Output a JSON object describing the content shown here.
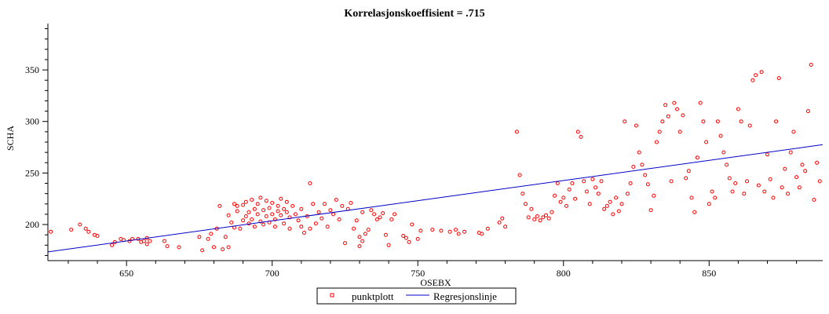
{
  "chart_data": {
    "type": "scatter",
    "title": "Korrelasjonskoeffisient =  .715",
    "xlabel": "OSEBX",
    "ylabel": "SCHA",
    "xlim": [
      623,
      889
    ],
    "ylim": [
      165,
      395
    ],
    "x_ticks": [
      650,
      700,
      750,
      800,
      850
    ],
    "y_ticks": [
      200,
      250,
      300,
      350
    ],
    "grid": false,
    "legend_position": "bottom-center",
    "colors": {
      "points": "#ff0000",
      "line": "#0000c8",
      "axis": "#000000"
    },
    "series": [
      {
        "name": "punktplott",
        "kind": "scatter",
        "marker": "circle-open",
        "points": [
          [
            624,
            193
          ],
          [
            631,
            195
          ],
          [
            634,
            200
          ],
          [
            636,
            196
          ],
          [
            637,
            193
          ],
          [
            639,
            190
          ],
          [
            640,
            189
          ],
          [
            645,
            180
          ],
          [
            646,
            183
          ],
          [
            648,
            186
          ],
          [
            649,
            185
          ],
          [
            651,
            184
          ],
          [
            652,
            186
          ],
          [
            654,
            186
          ],
          [
            655,
            183
          ],
          [
            656,
            184
          ],
          [
            657,
            187
          ],
          [
            657,
            181
          ],
          [
            658,
            184
          ],
          [
            663,
            184
          ],
          [
            664,
            179
          ],
          [
            668,
            178
          ],
          [
            675,
            188
          ],
          [
            676,
            175
          ],
          [
            678,
            186
          ],
          [
            679,
            191
          ],
          [
            680,
            178
          ],
          [
            681,
            196
          ],
          [
            682,
            218
          ],
          [
            683,
            176
          ],
          [
            684,
            188
          ],
          [
            685,
            178
          ],
          [
            685,
            209
          ],
          [
            686,
            202
          ],
          [
            687,
            197
          ],
          [
            687,
            220
          ],
          [
            688,
            213
          ],
          [
            688,
            218
          ],
          [
            689,
            196
          ],
          [
            690,
            204
          ],
          [
            690,
            219
          ],
          [
            691,
            208
          ],
          [
            691,
            222
          ],
          [
            692,
            201
          ],
          [
            692,
            212
          ],
          [
            693,
            224
          ],
          [
            693,
            205
          ],
          [
            694,
            215
          ],
          [
            694,
            198
          ],
          [
            695,
            210
          ],
          [
            695,
            220
          ],
          [
            696,
            203
          ],
          [
            696,
            226
          ],
          [
            697,
            200
          ],
          [
            697,
            214
          ],
          [
            698,
            208
          ],
          [
            698,
            223
          ],
          [
            699,
            202
          ],
          [
            699,
            216
          ],
          [
            700,
            210
          ],
          [
            700,
            221
          ],
          [
            701,
            205
          ],
          [
            701,
            198
          ],
          [
            702,
            213
          ],
          [
            702,
            218
          ],
          [
            703,
            209
          ],
          [
            703,
            225
          ],
          [
            704,
            201
          ],
          [
            704,
            215
          ],
          [
            705,
            212
          ],
          [
            705,
            222
          ],
          [
            706,
            196
          ],
          [
            706,
            207
          ],
          [
            707,
            218
          ],
          [
            708,
            210
          ],
          [
            709,
            204
          ],
          [
            710,
            198
          ],
          [
            710,
            215
          ],
          [
            711,
            192
          ],
          [
            712,
            208
          ],
          [
            713,
            240
          ],
          [
            713,
            196
          ],
          [
            714,
            220
          ],
          [
            715,
            201
          ],
          [
            716,
            212
          ],
          [
            717,
            206
          ],
          [
            718,
            220
          ],
          [
            719,
            198
          ],
          [
            720,
            214
          ],
          [
            721,
            210
          ],
          [
            722,
            224
          ],
          [
            723,
            205
          ],
          [
            724,
            218
          ],
          [
            725,
            182
          ],
          [
            726,
            215
          ],
          [
            727,
            221
          ],
          [
            728,
            196
          ],
          [
            729,
            204
          ],
          [
            730,
            188
          ],
          [
            730,
            179
          ],
          [
            731,
            184
          ],
          [
            731,
            212
          ],
          [
            732,
            191
          ],
          [
            733,
            195
          ],
          [
            734,
            214
          ],
          [
            735,
            210
          ],
          [
            736,
            205
          ],
          [
            737,
            207
          ],
          [
            738,
            211
          ],
          [
            739,
            190
          ],
          [
            740,
            180
          ],
          [
            741,
            205
          ],
          [
            742,
            210
          ],
          [
            745,
            189
          ],
          [
            746,
            187
          ],
          [
            747,
            183
          ],
          [
            748,
            200
          ],
          [
            750,
            186
          ],
          [
            751,
            194
          ],
          [
            755,
            195
          ],
          [
            758,
            194
          ],
          [
            761,
            193
          ],
          [
            763,
            195
          ],
          [
            764,
            191
          ],
          [
            766,
            193
          ],
          [
            771,
            192
          ],
          [
            772,
            191
          ],
          [
            774,
            196
          ],
          [
            778,
            202
          ],
          [
            779,
            206
          ],
          [
            780,
            198
          ],
          [
            784,
            290
          ],
          [
            785,
            248
          ],
          [
            786,
            230
          ],
          [
            787,
            220
          ],
          [
            788,
            207
          ],
          [
            789,
            215
          ],
          [
            790,
            205
          ],
          [
            791,
            208
          ],
          [
            792,
            204
          ],
          [
            793,
            207
          ],
          [
            794,
            209
          ],
          [
            795,
            206
          ],
          [
            796,
            212
          ],
          [
            797,
            228
          ],
          [
            798,
            240
          ],
          [
            799,
            222
          ],
          [
            800,
            226
          ],
          [
            801,
            218
          ],
          [
            802,
            234
          ],
          [
            803,
            240
          ],
          [
            804,
            225
          ],
          [
            805,
            290
          ],
          [
            806,
            285
          ],
          [
            807,
            242
          ],
          [
            808,
            232
          ],
          [
            809,
            220
          ],
          [
            810,
            244
          ],
          [
            811,
            236
          ],
          [
            812,
            230
          ],
          [
            813,
            242
          ],
          [
            814,
            215
          ],
          [
            815,
            218
          ],
          [
            816,
            222
          ],
          [
            817,
            210
          ],
          [
            818,
            226
          ],
          [
            819,
            213
          ],
          [
            820,
            220
          ],
          [
            821,
            300
          ],
          [
            822,
            230
          ],
          [
            823,
            240
          ],
          [
            824,
            256
          ],
          [
            825,
            296
          ],
          [
            826,
            270
          ],
          [
            827,
            258
          ],
          [
            828,
            248
          ],
          [
            829,
            239
          ],
          [
            830,
            214
          ],
          [
            831,
            228
          ],
          [
            832,
            280
          ],
          [
            833,
            290
          ],
          [
            834,
            300
          ],
          [
            835,
            316
          ],
          [
            836,
            305
          ],
          [
            837,
            242
          ],
          [
            838,
            318
          ],
          [
            839,
            312
          ],
          [
            840,
            290
          ],
          [
            841,
            306
          ],
          [
            842,
            245
          ],
          [
            843,
            252
          ],
          [
            844,
            226
          ],
          [
            845,
            212
          ],
          [
            846,
            265
          ],
          [
            847,
            318
          ],
          [
            848,
            300
          ],
          [
            849,
            280
          ],
          [
            850,
            220
          ],
          [
            851,
            232
          ],
          [
            852,
            226
          ],
          [
            853,
            300
          ],
          [
            854,
            286
          ],
          [
            855,
            270
          ],
          [
            856,
            258
          ],
          [
            857,
            245
          ],
          [
            858,
            232
          ],
          [
            859,
            240
          ],
          [
            860,
            312
          ],
          [
            861,
            300
          ],
          [
            862,
            230
          ],
          [
            863,
            242
          ],
          [
            864,
            296
          ],
          [
            865,
            340
          ],
          [
            866,
            345
          ],
          [
            867,
            238
          ],
          [
            868,
            348
          ],
          [
            869,
            232
          ],
          [
            870,
            268
          ],
          [
            871,
            244
          ],
          [
            872,
            226
          ],
          [
            873,
            300
          ],
          [
            874,
            342
          ],
          [
            875,
            236
          ],
          [
            876,
            254
          ],
          [
            877,
            230
          ],
          [
            878,
            270
          ],
          [
            879,
            290
          ],
          [
            880,
            246
          ],
          [
            881,
            236
          ],
          [
            882,
            258
          ],
          [
            883,
            252
          ],
          [
            884,
            310
          ],
          [
            885,
            355
          ],
          [
            886,
            224
          ],
          [
            887,
            260
          ],
          [
            888,
            242
          ]
        ]
      },
      {
        "name": "Regresjonslinje",
        "kind": "line",
        "points": [
          [
            623,
            173.5
          ],
          [
            889,
            277.5
          ]
        ]
      }
    ]
  }
}
